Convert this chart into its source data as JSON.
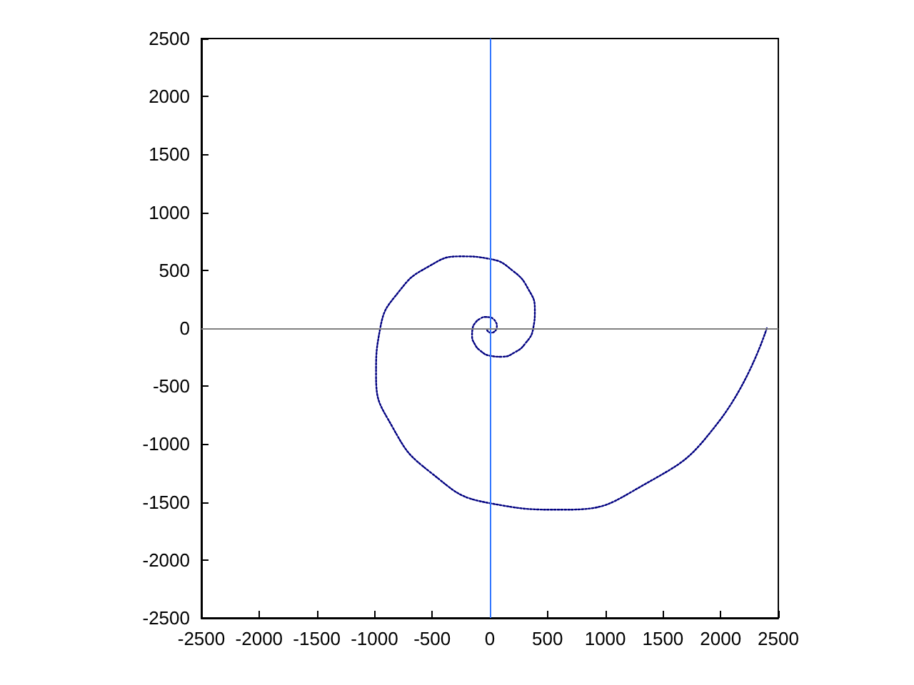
{
  "chart_data": {
    "type": "line",
    "line_style": "dotted",
    "marker": "none",
    "grid": false,
    "xlim": [
      -2500,
      2500
    ],
    "xticks": [
      -2500,
      -2000,
      -1500,
      -1000,
      -500,
      0,
      500,
      1000,
      1500,
      2000,
      2500
    ],
    "ylim": [
      -2500,
      2500
    ],
    "yticks": [
      -2500,
      -2000,
      -1500,
      -1000,
      -500,
      0,
      500,
      1000,
      1500,
      2000,
      2500
    ],
    "ref_lines": [
      {
        "axis": "x",
        "value": 0,
        "color": "#3377ff"
      },
      {
        "axis": "y",
        "value": 0,
        "color": "#808080"
      }
    ],
    "series": [
      {
        "color": "#000080",
        "x": [
          2400,
          1975,
          1345,
          649,
          0,
          -515,
          -847,
          -986,
          -950,
          -782,
          -532,
          -257,
          0,
          204,
          335,
          390,
          376,
          310,
          211,
          102,
          0,
          -81,
          -133,
          -154,
          -149,
          -123,
          -83,
          -40,
          0,
          32,
          52,
          61,
          59,
          49,
          33,
          16,
          0,
          -13,
          -21,
          -24,
          -24
        ],
        "values": [
          0,
          -818,
          -1345,
          -1566,
          -1510,
          -1243,
          -847,
          -409,
          0,
          324,
          532,
          620,
          598,
          492,
          335,
          162,
          0,
          -128,
          -211,
          -246,
          -237,
          -195,
          -133,
          -64,
          0,
          51,
          83,
          97,
          94,
          78,
          52,
          25,
          0,
          -20,
          -33,
          -39,
          -37,
          -30,
          -21,
          -10,
          0
        ]
      }
    ]
  }
}
